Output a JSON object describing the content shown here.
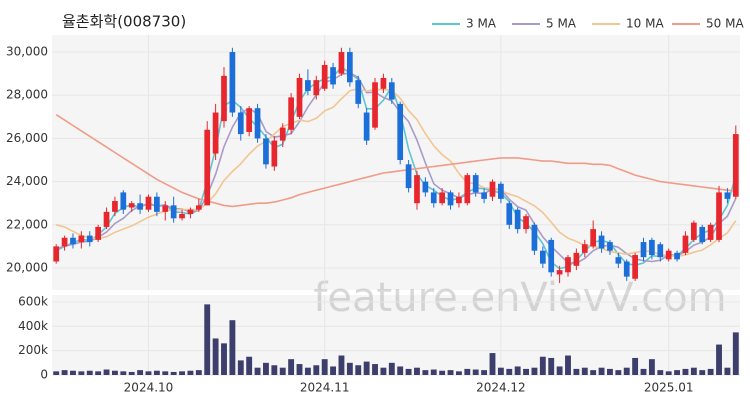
{
  "chart_data": {
    "type": "candlestick",
    "title": "율촌화학(008730)",
    "watermark": "feature.enVievV.com",
    "categories": [
      null,
      null,
      null,
      null,
      null,
      null,
      null,
      null,
      null,
      null,
      null,
      "2024.10",
      null,
      null,
      null,
      null,
      null,
      null,
      null,
      null,
      null,
      null,
      null,
      null,
      null,
      null,
      null,
      null,
      null,
      null,
      null,
      null,
      "2024.11",
      null,
      null,
      null,
      null,
      null,
      null,
      null,
      null,
      null,
      null,
      null,
      null,
      null,
      null,
      null,
      null,
      null,
      null,
      null,
      null,
      "2024.12",
      null,
      null,
      null,
      null,
      null,
      null,
      null,
      null,
      null,
      null,
      null,
      null,
      null,
      null,
      null,
      null,
      null,
      null,
      null,
      "2025.01",
      null,
      null,
      null,
      null,
      null,
      null,
      null,
      null
    ],
    "open": [
      20300,
      21000,
      21400,
      21200,
      21500,
      21300,
      21900,
      22600,
      23500,
      22800,
      23000,
      22700,
      23300,
      22600,
      22900,
      22300,
      22500,
      22700,
      22900,
      25300,
      26800,
      30000,
      27200,
      26300,
      27400,
      26000,
      24700,
      25900,
      26400,
      27000,
      28700,
      28000,
      28300,
      29300,
      29000,
      30000,
      28700,
      27200,
      26500,
      28300,
      28600,
      27600,
      24800,
      23000,
      24000,
      23500,
      23000,
      23500,
      23000,
      23000,
      24300,
      23500,
      23300,
      23900,
      23000,
      22700,
      21800,
      22000,
      20800,
      21300,
      19700,
      19800,
      20100,
      20700,
      21000,
      21500,
      21200,
      20500,
      20300,
      19500,
      21200,
      21300,
      21100,
      20400,
      20700,
      20700,
      21300,
      21900,
      21300,
      21300,
      23500,
      23300
    ],
    "high": [
      21100,
      21500,
      21600,
      21700,
      21700,
      22000,
      22800,
      23300,
      23600,
      23100,
      23400,
      23400,
      23500,
      23100,
      23300,
      22700,
      22800,
      23200,
      26800,
      27600,
      29300,
      30200,
      27500,
      27500,
      27600,
      26200,
      26100,
      26700,
      28100,
      29000,
      29200,
      28900,
      29600,
      29500,
      30200,
      30200,
      28900,
      27400,
      28800,
      29000,
      28800,
      27700,
      25000,
      24500,
      24200,
      23700,
      23700,
      23600,
      23500,
      24400,
      24400,
      23700,
      24100,
      24000,
      23100,
      22800,
      22500,
      22100,
      21000,
      21400,
      20100,
      20600,
      20900,
      21300,
      22200,
      21700,
      21300,
      20700,
      20400,
      20700,
      21400,
      21400,
      21200,
      20900,
      20800,
      21700,
      22200,
      22000,
      22100,
      23800,
      23700,
      26600
    ],
    "low": [
      20200,
      20800,
      20900,
      20900,
      21000,
      21200,
      21800,
      22400,
      22500,
      22600,
      22500,
      22600,
      22400,
      22200,
      22100,
      22200,
      22300,
      22600,
      22900,
      25000,
      26500,
      27000,
      25900,
      26100,
      25800,
      24600,
      24500,
      25600,
      26200,
      26900,
      28000,
      27800,
      28200,
      28300,
      28900,
      28400,
      27400,
      25700,
      26400,
      28100,
      27600,
      24800,
      23500,
      22700,
      23300,
      22800,
      22900,
      22700,
      22800,
      22900,
      23300,
      23000,
      23100,
      23000,
      21800,
      21600,
      21600,
      20600,
      20000,
      19600,
      19300,
      19600,
      19900,
      20500,
      20900,
      20700,
      20600,
      20000,
      19400,
      19400,
      20300,
      20400,
      20300,
      20300,
      20300,
      20600,
      21200,
      21100,
      21200,
      21200,
      23000,
      23200
    ],
    "close": [
      21000,
      21400,
      21100,
      21500,
      21200,
      21900,
      22600,
      23100,
      22700,
      23000,
      22700,
      23300,
      22600,
      22900,
      22300,
      22500,
      22700,
      22900,
      26400,
      27200,
      28900,
      27200,
      26200,
      27400,
      26000,
      24800,
      25900,
      26500,
      27900,
      28800,
      28200,
      28700,
      29400,
      28500,
      30000,
      28600,
      27600,
      25900,
      28600,
      28800,
      27800,
      25000,
      23700,
      24300,
      23500,
      23000,
      23500,
      22900,
      23300,
      24300,
      23500,
      23200,
      24000,
      23200,
      22000,
      21800,
      22400,
      20800,
      20200,
      19800,
      19900,
      20500,
      20700,
      21100,
      21800,
      20900,
      20800,
      20200,
      19600,
      20600,
      20500,
      20600,
      20500,
      20800,
      20400,
      21500,
      22100,
      21200,
      22000,
      23500,
      23200,
      26200
    ],
    "up_color": "#e8262d",
    "down_color": "#1c6fd8",
    "ylim": [
      18980,
      30790
    ],
    "yticks": [
      {
        "value": 20000,
        "label": "20,000"
      },
      {
        "value": 22000,
        "label": "22,000"
      },
      {
        "value": 24000,
        "label": "24,000"
      },
      {
        "value": 26000,
        "label": "26,000"
      },
      {
        "value": 28000,
        "label": "28,000"
      },
      {
        "value": 30000,
        "label": "30,000"
      }
    ],
    "series": [
      {
        "name": "3 MA",
        "color": "#5cc6d3",
        "values": [
          20800,
          21000,
          21170,
          21330,
          21270,
          21530,
          21900,
          22530,
          22800,
          22930,
          22800,
          23000,
          22870,
          22930,
          22600,
          22570,
          22500,
          22700,
          24000,
          25500,
          27500,
          27770,
          27430,
          26930,
          26530,
          26070,
          25570,
          25730,
          26770,
          27730,
          28300,
          28570,
          28770,
          28870,
          29300,
          29030,
          28730,
          27370,
          27370,
          27770,
          28400,
          27200,
          25500,
          24330,
          23830,
          23600,
          23330,
          23130,
          23230,
          23500,
          23700,
          23670,
          23570,
          23470,
          23070,
          22330,
          22070,
          21670,
          21130,
          20270,
          19970,
          20070,
          20370,
          20770,
          21200,
          21270,
          21170,
          20630,
          20200,
          20130,
          20230,
          20570,
          20530,
          20630,
          20570,
          20900,
          21330,
          21600,
          21770,
          22230,
          22900,
          24300
        ]
      },
      {
        "name": "5 MA",
        "color": "#a99bc9",
        "values": [
          20900,
          21000,
          21100,
          21200,
          21240,
          21420,
          21660,
          22060,
          22300,
          22660,
          22880,
          22960,
          22860,
          22900,
          22760,
          22720,
          22600,
          22660,
          23360,
          24340,
          25620,
          26520,
          27180,
          27380,
          27140,
          26320,
          26060,
          26120,
          26220,
          26780,
          27460,
          28020,
          28600,
          28720,
          28960,
          29040,
          28820,
          28120,
          28140,
          27900,
          27740,
          27220,
          26780,
          25920,
          24860,
          23900,
          23600,
          23440,
          23240,
          23400,
          23480,
          23440,
          23660,
          23640,
          23180,
          22840,
          22680,
          22040,
          21440,
          21000,
          20620,
          20240,
          20220,
          20440,
          20800,
          21000,
          21060,
          20960,
          20660,
          20420,
          20340,
          20300,
          20360,
          20600,
          20560,
          20760,
          21060,
          21200,
          21440,
          22060,
          22400,
          23220
        ]
      },
      {
        "name": "10 MA",
        "color": "#f2c592",
        "values": [
          22000,
          21900,
          21700,
          21500,
          21400,
          21350,
          21450,
          21650,
          21800,
          21950,
          22150,
          22350,
          22500,
          22650,
          22700,
          22700,
          22710,
          22700,
          23010,
          23430,
          24050,
          24470,
          24830,
          25280,
          25650,
          25870,
          26200,
          26560,
          26690,
          26850,
          26780,
          26930,
          27280,
          27440,
          27840,
          28210,
          28300,
          28190,
          28260,
          28270,
          28230,
          27860,
          27290,
          26870,
          26220,
          25660,
          25250,
          24950,
          24380,
          23930,
          23920,
          23710,
          23680,
          23570,
          23420,
          23300,
          23090,
          22880,
          22570,
          22120,
          21650,
          21380,
          21230,
          21040,
          21010,
          20920,
          20760,
          20700,
          20640,
          20720,
          20780,
          20770,
          20610,
          20580,
          20540,
          20600,
          20730,
          20830,
          21070,
          21360,
          21630,
          22190
        ]
      },
      {
        "name": "50 MA",
        "color": "#f09c88",
        "values": [
          27100,
          26850,
          26600,
          26350,
          26100,
          25850,
          25600,
          25350,
          25100,
          24850,
          24600,
          24350,
          24100,
          23900,
          23700,
          23500,
          23350,
          23200,
          23100,
          23000,
          22900,
          22850,
          22900,
          22950,
          23000,
          23000,
          23050,
          23150,
          23250,
          23400,
          23500,
          23600,
          23700,
          23800,
          23900,
          24000,
          24100,
          24200,
          24300,
          24400,
          24450,
          24500,
          24550,
          24600,
          24650,
          24700,
          24750,
          24800,
          24850,
          24900,
          24950,
          25000,
          25050,
          25100,
          25100,
          25100,
          25050,
          25000,
          24950,
          24950,
          24900,
          24850,
          24850,
          24850,
          24800,
          24800,
          24750,
          24600,
          24450,
          24300,
          24200,
          24100,
          24000,
          23950,
          23900,
          23850,
          23800,
          23750,
          23700,
          23650,
          23600,
          23550
        ]
      }
    ],
    "volume": {
      "color": "#3c3e6b",
      "ylim": [
        0,
        657000
      ],
      "yticks": [
        0,
        {
          "value": 200000,
          "label": "200k"
        },
        {
          "value": 400000,
          "label": "400k"
        },
        {
          "value": 600000,
          "label": "600k"
        }
      ],
      "values": [
        30000,
        40000,
        35000,
        30000,
        35000,
        30000,
        45000,
        35000,
        30000,
        25000,
        40000,
        30000,
        35000,
        30000,
        25000,
        30000,
        35000,
        40000,
        580000,
        300000,
        260000,
        450000,
        120000,
        150000,
        60000,
        100000,
        80000,
        60000,
        130000,
        90000,
        60000,
        80000,
        130000,
        70000,
        160000,
        100000,
        80000,
        110000,
        90000,
        60000,
        100000,
        70000,
        50000,
        60000,
        40000,
        45000,
        35000,
        40000,
        30000,
        50000,
        45000,
        40000,
        180000,
        60000,
        50000,
        70000,
        50000,
        60000,
        150000,
        140000,
        70000,
        160000,
        50000,
        60000,
        40000,
        60000,
        50000,
        40000,
        60000,
        140000,
        50000,
        130000,
        40000,
        30000,
        40000,
        50000,
        60000,
        40000,
        50000,
        250000,
        60000,
        350000
      ]
    }
  }
}
